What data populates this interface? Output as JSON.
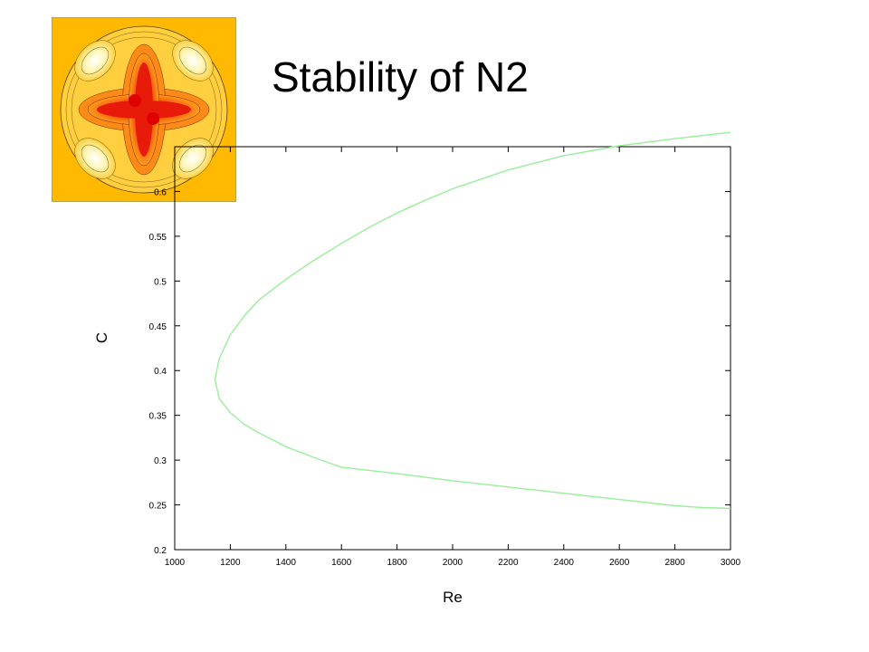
{
  "slide": {
    "title": "Stability of N2"
  },
  "thumbnail": {
    "icon": "contour-plot-icon",
    "background": "#ffb900",
    "accent": "#e50000"
  },
  "chart_data": {
    "type": "line",
    "title": "",
    "xlabel": "Re",
    "ylabel": "C",
    "xlim": [
      1000,
      3000
    ],
    "ylim": [
      0.2,
      0.65
    ],
    "xticks": [
      1000,
      1200,
      1400,
      1600,
      1800,
      2000,
      2200,
      2400,
      2600,
      2800,
      3000
    ],
    "yticks": [
      0.2,
      0.25,
      0.3,
      0.35,
      0.4,
      0.45,
      0.5,
      0.55,
      0.6
    ],
    "grid": false,
    "legend": "none",
    "series": [
      {
        "color": "#9aee9a",
        "points": [
          [
            3000,
            0.246
          ],
          [
            2900,
            0.247
          ],
          [
            2800,
            0.249
          ],
          [
            2600,
            0.256
          ],
          [
            2400,
            0.263
          ],
          [
            2200,
            0.27
          ],
          [
            2000,
            0.277
          ],
          [
            1800,
            0.285
          ],
          [
            1600,
            0.292
          ],
          [
            1500,
            0.303
          ],
          [
            1400,
            0.315
          ],
          [
            1300,
            0.331
          ],
          [
            1250,
            0.34
          ],
          [
            1200,
            0.353
          ],
          [
            1160,
            0.369
          ],
          [
            1145,
            0.39
          ],
          [
            1160,
            0.413
          ],
          [
            1200,
            0.44
          ],
          [
            1250,
            0.461
          ],
          [
            1300,
            0.478
          ],
          [
            1400,
            0.502
          ],
          [
            1500,
            0.523
          ],
          [
            1600,
            0.542
          ],
          [
            1700,
            0.56
          ],
          [
            1800,
            0.576
          ],
          [
            1900,
            0.59
          ],
          [
            2000,
            0.603
          ],
          [
            2200,
            0.624
          ],
          [
            2400,
            0.64
          ],
          [
            2600,
            0.651
          ],
          [
            2800,
            0.659
          ],
          [
            3000,
            0.666
          ]
        ]
      }
    ]
  }
}
